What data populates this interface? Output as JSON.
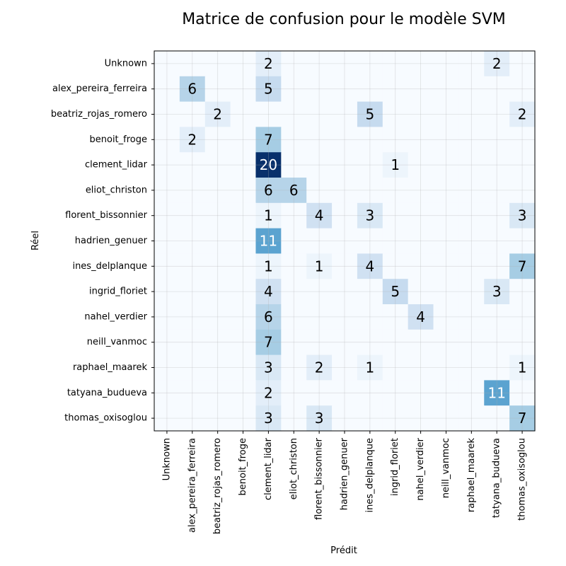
{
  "chart_data": {
    "type": "heatmap",
    "title": "Matrice de confusion pour le modèle SVM",
    "xlabel": "Prédit",
    "ylabel": "Réel",
    "rows": [
      "Unknown",
      "alex_pereira_ferreira",
      "beatriz_rojas_romero",
      "benoit_froge",
      "clement_lidar",
      "eliot_christon",
      "florent_bissonnier",
      "hadrien_genuer",
      "ines_delplanque",
      "ingrid_floriet",
      "nahel_verdier",
      "neill_vanmoc",
      "raphael_maarek",
      "tatyana_budueva",
      "thomas_oxisoglou"
    ],
    "columns": [
      "Unknown",
      "alex_pereira_ferreira",
      "beatriz_rojas_romero",
      "benoit_froge",
      "clement_lidar",
      "eliot_christon",
      "florent_bissonnier",
      "hadrien_genuer",
      "ines_delplanque",
      "ingrid_floriet",
      "nahel_verdier",
      "neill_vanmoc",
      "raphael_maarek",
      "tatyana_budueva",
      "thomas_oxisoglou"
    ],
    "values": [
      [
        0,
        0,
        0,
        0,
        2,
        0,
        0,
        0,
        0,
        0,
        0,
        0,
        0,
        2,
        0
      ],
      [
        0,
        6,
        0,
        0,
        5,
        0,
        0,
        0,
        0,
        0,
        0,
        0,
        0,
        0,
        0
      ],
      [
        0,
        0,
        2,
        0,
        0,
        0,
        0,
        0,
        5,
        0,
        0,
        0,
        0,
        0,
        2
      ],
      [
        0,
        2,
        0,
        0,
        7,
        0,
        0,
        0,
        0,
        0,
        0,
        0,
        0,
        0,
        0
      ],
      [
        0,
        0,
        0,
        0,
        20,
        0,
        0,
        0,
        0,
        1,
        0,
        0,
        0,
        0,
        0
      ],
      [
        0,
        0,
        0,
        0,
        6,
        6,
        0,
        0,
        0,
        0,
        0,
        0,
        0,
        0,
        0
      ],
      [
        0,
        0,
        0,
        0,
        1,
        0,
        4,
        0,
        3,
        0,
        0,
        0,
        0,
        0,
        3
      ],
      [
        0,
        0,
        0,
        0,
        11,
        0,
        0,
        0,
        0,
        0,
        0,
        0,
        0,
        0,
        0
      ],
      [
        0,
        0,
        0,
        0,
        1,
        0,
        1,
        0,
        4,
        0,
        0,
        0,
        0,
        0,
        7
      ],
      [
        0,
        0,
        0,
        0,
        4,
        0,
        0,
        0,
        0,
        5,
        0,
        0,
        0,
        3,
        0
      ],
      [
        0,
        0,
        0,
        0,
        6,
        0,
        0,
        0,
        0,
        0,
        4,
        0,
        0,
        0,
        0
      ],
      [
        0,
        0,
        0,
        0,
        7,
        0,
        0,
        0,
        0,
        0,
        0,
        0,
        0,
        0,
        0
      ],
      [
        0,
        0,
        0,
        0,
        3,
        0,
        2,
        0,
        1,
        0,
        0,
        0,
        0,
        0,
        1
      ],
      [
        0,
        0,
        0,
        0,
        2,
        0,
        0,
        0,
        0,
        0,
        0,
        0,
        0,
        11,
        0
      ],
      [
        0,
        0,
        0,
        0,
        3,
        0,
        3,
        0,
        0,
        0,
        0,
        0,
        0,
        0,
        7
      ]
    ],
    "colormap": "Blues",
    "grid": true,
    "zero_cells_labeled": false
  }
}
